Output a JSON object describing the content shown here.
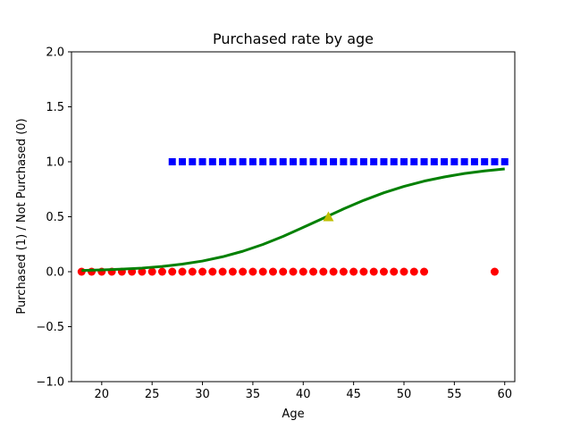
{
  "chart_data": {
    "type": "scatter",
    "title": "Purchased rate by age",
    "xlabel": "Age",
    "ylabel": "Purchased (1) / Not Purchased (0)",
    "xlim": [
      17,
      61
    ],
    "ylim": [
      -1.0,
      2.0
    ],
    "xticks": [
      20,
      25,
      30,
      35,
      40,
      45,
      50,
      55,
      60
    ],
    "xtick_labels": [
      "20",
      "25",
      "30",
      "35",
      "40",
      "45",
      "50",
      "55",
      "60"
    ],
    "yticks": [
      -1.0,
      -0.5,
      0.0,
      0.5,
      1.0,
      1.5,
      2.0
    ],
    "ytick_labels": [
      "−1.0",
      "−0.5",
      "0.0",
      "0.5",
      "1.0",
      "1.5",
      "2.0"
    ],
    "grid": false,
    "series": [
      {
        "marker": "square",
        "color": "#0000ff",
        "x": [
          27,
          28,
          29,
          30,
          31,
          32,
          33,
          34,
          35,
          36,
          37,
          38,
          39,
          40,
          41,
          42,
          43,
          44,
          45,
          46,
          47,
          48,
          49,
          50,
          51,
          52,
          53,
          54,
          55,
          56,
          57,
          58,
          59,
          60
        ],
        "y": [
          1,
          1,
          1,
          1,
          1,
          1,
          1,
          1,
          1,
          1,
          1,
          1,
          1,
          1,
          1,
          1,
          1,
          1,
          1,
          1,
          1,
          1,
          1,
          1,
          1,
          1,
          1,
          1,
          1,
          1,
          1,
          1,
          1,
          1
        ]
      },
      {
        "marker": "circle",
        "color": "#ff0000",
        "x": [
          18,
          19,
          20,
          21,
          22,
          23,
          24,
          25,
          26,
          27,
          28,
          29,
          30,
          31,
          32,
          33,
          34,
          35,
          36,
          37,
          38,
          39,
          40,
          41,
          42,
          43,
          44,
          45,
          46,
          47,
          48,
          49,
          50,
          51,
          52,
          59
        ],
        "y": [
          0,
          0,
          0,
          0,
          0,
          0,
          0,
          0,
          0,
          0,
          0,
          0,
          0,
          0,
          0,
          0,
          0,
          0,
          0,
          0,
          0,
          0,
          0,
          0,
          0,
          0,
          0,
          0,
          0,
          0,
          0,
          0,
          0,
          0,
          0,
          0
        ]
      },
      {
        "type": "line",
        "color": "#008000",
        "x": [
          18,
          20,
          22,
          24,
          26,
          28,
          30,
          32,
          34,
          36,
          38,
          40,
          42,
          44,
          46,
          48,
          50,
          52,
          54,
          56,
          58,
          60
        ],
        "y": [
          0.011,
          0.016,
          0.023,
          0.033,
          0.048,
          0.069,
          0.097,
          0.136,
          0.186,
          0.248,
          0.321,
          0.403,
          0.487,
          0.571,
          0.649,
          0.718,
          0.776,
          0.824,
          0.862,
          0.893,
          0.917,
          0.935
        ]
      },
      {
        "marker": "triangle",
        "color": "#bfbf00",
        "x": [
          42.5
        ],
        "y": [
          0.5
        ]
      }
    ]
  }
}
